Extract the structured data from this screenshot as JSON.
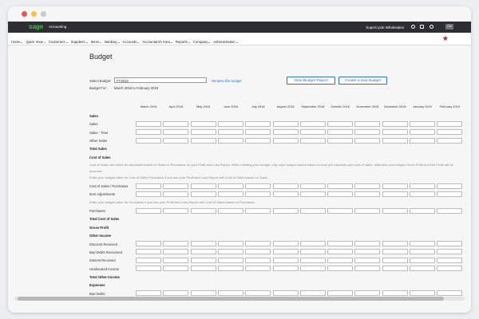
{
  "header": {
    "logo": "sage",
    "product": "Accounting",
    "company": "SuperCycle Wholesales",
    "user": "CW"
  },
  "nav": [
    "Home",
    "Quick View",
    "Customers",
    "Suppliers",
    "Items",
    "Banking",
    "Accounts",
    "Accountant's Area",
    "Reports",
    "Company",
    "Administration"
  ],
  "page": {
    "title": "Budget",
    "select_label": "Select Budget:",
    "select_value": "FY2018",
    "rename_link": "Rename this budget",
    "budget_for_label": "Budget For:",
    "budget_for_value": "March 2018 to February 2019",
    "buttons": [
      "View Budget Report",
      "Create a new Budget"
    ]
  },
  "table": {
    "months": [
      "March 2018",
      "April 2018",
      "May 2018",
      "June 2018",
      "July 2018",
      "August 2018",
      "September 2018",
      "October 2018",
      "November 2018",
      "December 2018",
      "January 2019",
      "February 2019"
    ],
    "rows": [
      {
        "label": "Sales",
        "kind": "heading"
      },
      {
        "label": "Sales",
        "kind": "input"
      },
      {
        "label": "Sales - Time",
        "kind": "input"
      },
      {
        "label": "Other Sales",
        "kind": "input"
      },
      {
        "label": "Total Sales",
        "kind": "heading"
      },
      {
        "label": "Cost of Sales",
        "kind": "heading"
      },
      {
        "label": "Cost of Sales can either be calculated based on Sales or Purchases on your Profit and Loss Report. When creating your budget, only input budget values based on how you calculate your cost of sales, otherwise your budget Gross Profit and Net Profit will be incorrect.",
        "kind": "note"
      },
      {
        "label": "Enter your budget value for Cost of Sales Purchases if you use your Profit and Loss Report with Cost of Sales based on Sales",
        "kind": "note"
      },
      {
        "label": "Cost of Sales / Purchases",
        "kind": "input"
      },
      {
        "label": "Item Adjustments",
        "kind": "input"
      },
      {
        "label": "Enter your budget value for Purchases if you use your Profit and Loss Report with Cost of Sales based on Purchases",
        "kind": "note"
      },
      {
        "label": "Purchases",
        "kind": "input"
      },
      {
        "label": "Total Cost of Sales",
        "kind": "heading"
      },
      {
        "label": "Gross Profit",
        "kind": "heading"
      },
      {
        "label": "Other Income",
        "kind": "heading"
      },
      {
        "label": "Discount Received",
        "kind": "input"
      },
      {
        "label": "Bad Debts Recovered",
        "kind": "input"
      },
      {
        "label": "Interest Received",
        "kind": "input"
      },
      {
        "label": "Unallocated Income",
        "kind": "input"
      },
      {
        "label": "Total Other Income",
        "kind": "heading"
      },
      {
        "label": "Expenses",
        "kind": "heading"
      },
      {
        "label": "Bad Debts",
        "kind": "input"
      }
    ]
  }
}
